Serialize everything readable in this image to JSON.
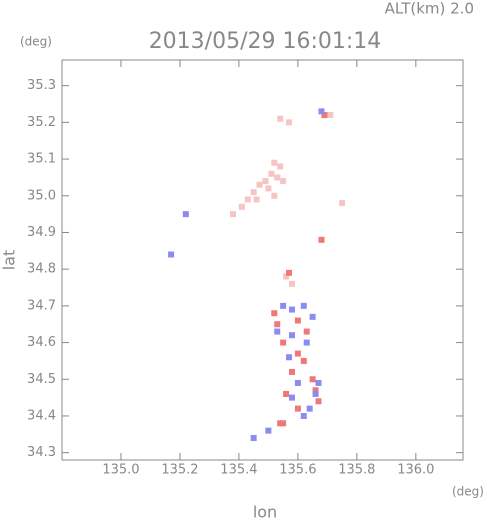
{
  "chart_data": {
    "type": "scatter",
    "title": "2013/05/29 16:01:14",
    "subtitle": "ALT(km) 2.0",
    "y_unit": "(deg)",
    "x_unit": "(deg)",
    "x_label": "lon",
    "y_label": "lat",
    "xlim": [
      134.8,
      136.16
    ],
    "ylim": [
      34.28,
      35.37
    ],
    "xticks": [
      {
        "value": 135,
        "label": "135.0"
      },
      135.2,
      135.4,
      135.6,
      135.8,
      {
        "value": 136,
        "label": "136.0"
      }
    ],
    "yticks": [
      34.3,
      34.4,
      34.5,
      34.6,
      34.7,
      34.8,
      34.9,
      {
        "value": 35,
        "label": "35.0"
      },
      35.1,
      35.2,
      35.3
    ],
    "series": [
      {
        "color": "#f7c4c4",
        "x": [
          135.52,
          135.51,
          135.53,
          135.49,
          135.47,
          135.5,
          135.45,
          135.43,
          135.41,
          135.38,
          135.54,
          135.55,
          135.52,
          135.46,
          135.57,
          135.54,
          135.71,
          135.75,
          135.56,
          135.58
        ],
        "y": [
          35.09,
          35.06,
          35.05,
          35.04,
          35.03,
          35.02,
          35.01,
          34.99,
          34.97,
          34.95,
          35.08,
          35.04,
          35.0,
          34.99,
          35.2,
          35.21,
          35.22,
          34.98,
          34.78,
          34.76
        ]
      },
      {
        "color": "#ee7777",
        "x": [
          135.69,
          135.54,
          135.55,
          135.6,
          135.65,
          135.66,
          135.58,
          135.53,
          135.62,
          135.68,
          135.57,
          135.55,
          135.6,
          135.63,
          135.56,
          135.52,
          135.67,
          135.6
        ],
        "y": [
          35.22,
          34.38,
          34.38,
          34.66,
          34.5,
          34.47,
          34.52,
          34.65,
          34.55,
          34.88,
          34.79,
          34.6,
          34.42,
          34.63,
          34.46,
          34.68,
          34.44,
          34.57
        ]
      },
      {
        "color": "#8a8cf0",
        "x": [
          135.17,
          135.22,
          135.58,
          135.62,
          135.65,
          135.55,
          135.58,
          135.57,
          135.6,
          135.66,
          135.64,
          135.58,
          135.62,
          135.63,
          135.53,
          135.67,
          135.45,
          135.5,
          135.68
        ],
        "y": [
          34.84,
          34.95,
          34.69,
          34.7,
          34.67,
          34.7,
          34.62,
          34.56,
          34.49,
          34.46,
          34.42,
          34.45,
          34.4,
          34.6,
          34.63,
          34.49,
          34.34,
          34.36,
          35.23
        ]
      }
    ]
  }
}
